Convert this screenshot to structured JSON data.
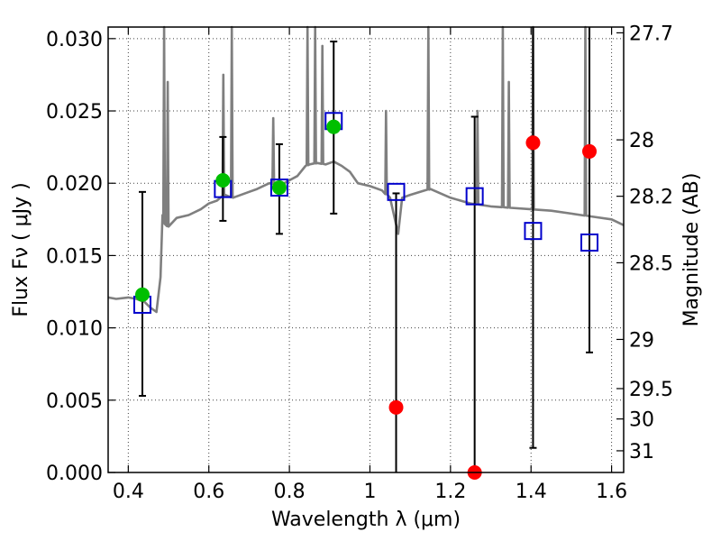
{
  "chart_data": {
    "type": "scatter",
    "title": "",
    "xlabel": "Wavelength  λ (μm)",
    "ylabel": "Flux  Fν  ( μJy )",
    "y2label": "Magnitude (AB)",
    "xlim": [
      0.35,
      1.63
    ],
    "ylim": [
      0.0,
      0.0308
    ],
    "grid": true,
    "x_ticks": [
      0.4,
      0.6,
      0.8,
      1.0,
      1.2,
      1.4,
      1.6
    ],
    "x_tick_labels": [
      "0.4",
      "0.6",
      "0.8",
      "1",
      "1.2",
      "1.4",
      "1.6"
    ],
    "y_ticks": [
      0.0,
      0.005,
      0.01,
      0.015,
      0.02,
      0.025,
      0.03
    ],
    "y_tick_labels": [
      "0.000",
      "0.005",
      "0.010",
      "0.015",
      "0.020",
      "0.025",
      "0.030"
    ],
    "y2_ticks": [
      {
        "label": "27.7",
        "flux": 0.0304
      },
      {
        "label": "28",
        "flux": 0.023
      },
      {
        "label": "28.2",
        "flux": 0.0191
      },
      {
        "label": "28.5",
        "flux": 0.0145
      },
      {
        "label": "29",
        "flux": 0.0092
      },
      {
        "label": "29.5",
        "flux": 0.0058
      },
      {
        "label": "30",
        "flux": 0.0037
      },
      {
        "label": "31",
        "flux": 0.0015
      }
    ],
    "observed": [
      {
        "x": 0.435,
        "y": 0.0123,
        "err_lo": 0.0053,
        "err_hi": 0.0194,
        "detected": true
      },
      {
        "x": 0.635,
        "y": 0.0202,
        "err_lo": 0.0174,
        "err_hi": 0.0232,
        "detected": true
      },
      {
        "x": 0.775,
        "y": 0.0197,
        "err_lo": 0.0165,
        "err_hi": 0.0227,
        "detected": true
      },
      {
        "x": 0.91,
        "y": 0.0239,
        "err_lo": 0.0179,
        "err_hi": 0.0298,
        "detected": true
      },
      {
        "x": 1.065,
        "y": 0.0045,
        "err_lo": 0.0,
        "err_hi": 0.0193,
        "detected": false
      },
      {
        "x": 1.26,
        "y": 0.0,
        "err_lo": 0.0,
        "err_hi": 0.0246,
        "detected": false
      },
      {
        "x": 1.405,
        "y": 0.0228,
        "err_lo": 0.0017,
        "err_hi": 0.0308,
        "detected": false
      },
      {
        "x": 1.545,
        "y": 0.0222,
        "err_lo": 0.0083,
        "err_hi": 0.0308,
        "detected": false
      }
    ],
    "model_fluxes": [
      {
        "x": 0.435,
        "y": 0.0116
      },
      {
        "x": 0.635,
        "y": 0.0196
      },
      {
        "x": 0.775,
        "y": 0.0197
      },
      {
        "x": 0.91,
        "y": 0.0243
      },
      {
        "x": 1.065,
        "y": 0.0194
      },
      {
        "x": 1.26,
        "y": 0.0191
      },
      {
        "x": 1.405,
        "y": 0.0167
      },
      {
        "x": 1.545,
        "y": 0.0159
      }
    ],
    "template_sed": {
      "x": [
        0.35,
        0.37,
        0.4,
        0.42,
        0.44,
        0.455,
        0.47,
        0.48,
        0.485,
        0.49,
        0.5,
        0.52,
        0.55,
        0.58,
        0.6,
        0.62,
        0.64,
        0.66,
        0.7,
        0.72,
        0.75,
        0.78,
        0.8,
        0.82,
        0.84,
        0.85,
        0.87,
        0.89,
        0.91,
        0.93,
        0.95,
        0.97,
        1.0,
        1.03,
        1.05,
        1.07,
        1.08,
        1.1,
        1.15,
        1.2,
        1.25,
        1.3,
        1.35,
        1.4,
        1.45,
        1.5,
        1.55,
        1.6,
        1.63
      ],
      "y": [
        0.0121,
        0.012,
        0.0121,
        0.012,
        0.0118,
        0.0114,
        0.0111,
        0.0135,
        0.0178,
        0.0172,
        0.017,
        0.0176,
        0.0178,
        0.0182,
        0.0186,
        0.0188,
        0.0192,
        0.019,
        0.0194,
        0.0196,
        0.02,
        0.0199,
        0.0202,
        0.0205,
        0.0212,
        0.0213,
        0.0214,
        0.0213,
        0.0215,
        0.0212,
        0.0208,
        0.02,
        0.0198,
        0.0195,
        0.019,
        0.0165,
        0.019,
        0.0192,
        0.0196,
        0.019,
        0.0186,
        0.0184,
        0.0183,
        0.0182,
        0.0181,
        0.0179,
        0.0177,
        0.0175,
        0.0171
      ]
    },
    "emission_lines": [
      {
        "x": 0.489,
        "peak": 0.0308
      },
      {
        "x": 0.498,
        "peak": 0.027
      },
      {
        "x": 0.636,
        "peak": 0.0275
      },
      {
        "x": 0.657,
        "peak": 0.0308
      },
      {
        "x": 0.76,
        "peak": 0.0245
      },
      {
        "x": 0.845,
        "peak": 0.0308
      },
      {
        "x": 0.864,
        "peak": 0.0308
      },
      {
        "x": 0.882,
        "peak": 0.0295
      },
      {
        "x": 1.04,
        "peak": 0.025
      },
      {
        "x": 1.145,
        "peak": 0.0308
      },
      {
        "x": 1.267,
        "peak": 0.025
      },
      {
        "x": 1.33,
        "peak": 0.0308
      },
      {
        "x": 1.345,
        "peak": 0.027
      },
      {
        "x": 1.405,
        "peak": 0.0308
      },
      {
        "x": 1.535,
        "peak": 0.0308
      }
    ],
    "colors": {
      "detected": "#00bf00",
      "non_detected": "#ff0000",
      "model_box": "#0000cc",
      "template": "#7f7f7f",
      "error_bar": "#000000"
    }
  }
}
